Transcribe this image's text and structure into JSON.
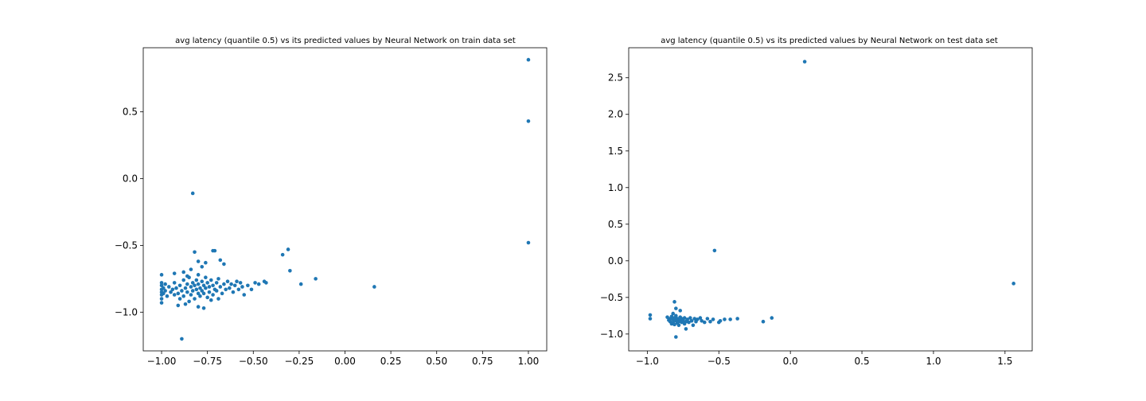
{
  "chart_data": [
    {
      "type": "scatter",
      "title": "avg latency (quantile 0.5) vs its predicted values by Neural Network on train data set",
      "xlabel": "",
      "ylabel": "",
      "xlim": [
        -1.1,
        1.1
      ],
      "ylim": [
        -1.29,
        0.98
      ],
      "xticks": [
        -1.0,
        -0.75,
        -0.5,
        -0.25,
        0.0,
        0.25,
        0.5,
        0.75,
        1.0
      ],
      "xtick_labels": [
        "−1.00",
        "−0.75",
        "−0.50",
        "−0.25",
        "0.00",
        "0.25",
        "0.50",
        "0.75",
        "1.00"
      ],
      "yticks": [
        -1.0,
        -0.5,
        0.0,
        0.5
      ],
      "ytick_labels": [
        "−1.0",
        "−0.5",
        "0.0",
        "0.5"
      ],
      "grid": false,
      "marker_color": "#1f77b4",
      "points": [
        [
          -1.0,
          -0.78
        ],
        [
          -1.0,
          -0.8
        ],
        [
          -1.0,
          -0.83
        ],
        [
          -1.0,
          -0.85
        ],
        [
          -1.0,
          -0.87
        ],
        [
          -1.0,
          -0.9
        ],
        [
          -1.0,
          -0.93
        ],
        [
          -1.0,
          -0.72
        ],
        [
          -0.99,
          -0.82
        ],
        [
          -0.99,
          -0.86
        ],
        [
          -0.98,
          -0.79
        ],
        [
          -0.98,
          -0.84
        ],
        [
          -0.97,
          -0.88
        ],
        [
          -0.96,
          -0.81
        ],
        [
          -0.95,
          -0.85
        ],
        [
          -0.94,
          -0.83
        ],
        [
          -0.93,
          -0.87
        ],
        [
          -0.93,
          -0.78
        ],
        [
          -0.92,
          -0.82
        ],
        [
          -0.91,
          -0.86
        ],
        [
          -0.9,
          -0.8
        ],
        [
          -0.9,
          -0.9
        ],
        [
          -0.89,
          -0.84
        ],
        [
          -0.88,
          -0.76
        ],
        [
          -0.88,
          -0.88
        ],
        [
          -0.87,
          -0.82
        ],
        [
          -0.86,
          -0.79
        ],
        [
          -0.86,
          -0.85
        ],
        [
          -0.85,
          -0.92
        ],
        [
          -0.85,
          -0.74
        ],
        [
          -0.84,
          -0.81
        ],
        [
          -0.84,
          -0.87
        ],
        [
          -0.83,
          -0.78
        ],
        [
          -0.83,
          -0.84
        ],
        [
          -0.82,
          -0.8
        ],
        [
          -0.82,
          -0.9
        ],
        [
          -0.81,
          -0.76
        ],
        [
          -0.81,
          -0.83
        ],
        [
          -0.8,
          -0.79
        ],
        [
          -0.8,
          -0.86
        ],
        [
          -0.8,
          -0.72
        ],
        [
          -0.79,
          -0.82
        ],
        [
          -0.79,
          -0.88
        ],
        [
          -0.78,
          -0.77
        ],
        [
          -0.78,
          -0.84
        ],
        [
          -0.77,
          -0.8
        ],
        [
          -0.77,
          -0.86
        ],
        [
          -0.76,
          -0.74
        ],
        [
          -0.76,
          -0.82
        ],
        [
          -0.75,
          -0.78
        ],
        [
          -0.75,
          -0.89
        ],
        [
          -0.74,
          -0.81
        ],
        [
          -0.74,
          -0.85
        ],
        [
          -0.73,
          -0.76
        ],
        [
          -0.72,
          -0.8
        ],
        [
          -0.72,
          -0.87
        ],
        [
          -0.71,
          -0.83
        ],
        [
          -0.7,
          -0.78
        ],
        [
          -0.7,
          -0.84
        ],
        [
          -0.69,
          -0.75
        ],
        [
          -0.68,
          -0.81
        ],
        [
          -0.67,
          -0.86
        ],
        [
          -0.66,
          -0.79
        ],
        [
          -0.65,
          -0.83
        ],
        [
          -0.64,
          -0.77
        ],
        [
          -0.63,
          -0.82
        ],
        [
          -0.62,
          -0.79
        ],
        [
          -0.61,
          -0.85
        ],
        [
          -0.6,
          -0.8
        ],
        [
          -0.59,
          -0.77
        ],
        [
          -0.58,
          -0.83
        ],
        [
          -0.57,
          -0.78
        ],
        [
          -0.56,
          -0.81
        ],
        [
          -0.55,
          -0.87
        ],
        [
          -0.53,
          -0.8
        ],
        [
          -0.51,
          -0.83
        ],
        [
          -0.49,
          -0.78
        ],
        [
          -0.47,
          -0.79
        ],
        [
          -0.44,
          -0.77
        ],
        [
          -0.43,
          -0.78
        ],
        [
          -0.91,
          -0.95
        ],
        [
          -0.87,
          -0.94
        ],
        [
          -0.8,
          -0.96
        ],
        [
          -0.77,
          -0.97
        ],
        [
          -0.73,
          -0.91
        ],
        [
          -0.69,
          -0.9
        ],
        [
          -0.84,
          -0.68
        ],
        [
          -0.8,
          -0.62
        ],
        [
          -0.78,
          -0.66
        ],
        [
          -0.76,
          -0.63
        ],
        [
          -0.72,
          -0.54
        ],
        [
          -0.71,
          -0.54
        ],
        [
          -0.68,
          -0.61
        ],
        [
          -0.66,
          -0.64
        ],
        [
          -0.82,
          -0.55
        ],
        [
          -0.93,
          -0.71
        ],
        [
          -0.88,
          -0.7
        ],
        [
          -0.86,
          -0.73
        ],
        [
          -0.89,
          -1.2
        ],
        [
          -0.83,
          -0.11
        ],
        [
          -0.34,
          -0.57
        ],
        [
          -0.31,
          -0.53
        ],
        [
          -0.3,
          -0.69
        ],
        [
          -0.24,
          -0.79
        ],
        [
          -0.16,
          -0.75
        ],
        [
          0.16,
          -0.81
        ],
        [
          1.0,
          0.89
        ],
        [
          1.0,
          0.43
        ],
        [
          1.0,
          -0.48
        ]
      ]
    },
    {
      "type": "scatter",
      "title": "avg latency (quantile 0.5) vs its predicted values by Neural Network on test data set",
      "xlabel": "",
      "ylabel": "",
      "xlim": [
        -1.13,
        1.69
      ],
      "ylim": [
        -1.23,
        2.91
      ],
      "xticks": [
        -1.0,
        -0.5,
        0.0,
        0.5,
        1.0,
        1.5
      ],
      "xtick_labels": [
        "−1.0",
        "−0.5",
        "0.0",
        "0.5",
        "1.0",
        "1.5"
      ],
      "yticks": [
        -1.0,
        -0.5,
        0.0,
        0.5,
        1.0,
        1.5,
        2.0,
        2.5
      ],
      "ytick_labels": [
        "−1.0",
        "−0.5",
        "0.0",
        "0.5",
        "1.0",
        "1.5",
        "2.0",
        "2.5"
      ],
      "grid": false,
      "marker_color": "#1f77b4",
      "points": [
        [
          -0.98,
          -0.74
        ],
        [
          -0.98,
          -0.79
        ],
        [
          -0.86,
          -0.77
        ],
        [
          -0.85,
          -0.81
        ],
        [
          -0.84,
          -0.79
        ],
        [
          -0.84,
          -0.83
        ],
        [
          -0.83,
          -0.76
        ],
        [
          -0.83,
          -0.86
        ],
        [
          -0.82,
          -0.8
        ],
        [
          -0.82,
          -0.84
        ],
        [
          -0.81,
          -0.78
        ],
        [
          -0.81,
          -0.87
        ],
        [
          -0.8,
          -0.82
        ],
        [
          -0.8,
          -0.75
        ],
        [
          -0.79,
          -0.85
        ],
        [
          -0.79,
          -0.79
        ],
        [
          -0.78,
          -0.83
        ],
        [
          -0.78,
          -0.88
        ],
        [
          -0.77,
          -0.77
        ],
        [
          -0.77,
          -0.81
        ],
        [
          -0.76,
          -0.84
        ],
        [
          -0.76,
          -0.79
        ],
        [
          -0.75,
          -0.82
        ],
        [
          -0.74,
          -0.86
        ],
        [
          -0.74,
          -0.78
        ],
        [
          -0.73,
          -0.83
        ],
        [
          -0.72,
          -0.8
        ],
        [
          -0.71,
          -0.84
        ],
        [
          -0.7,
          -0.78
        ],
        [
          -0.69,
          -0.82
        ],
        [
          -0.68,
          -0.88
        ],
        [
          -0.67,
          -0.79
        ],
        [
          -0.66,
          -0.83
        ],
        [
          -0.65,
          -0.8
        ],
        [
          -0.63,
          -0.78
        ],
        [
          -0.62,
          -0.82
        ],
        [
          -0.6,
          -0.84
        ],
        [
          -0.58,
          -0.79
        ],
        [
          -0.56,
          -0.83
        ],
        [
          -0.54,
          -0.8
        ],
        [
          -0.5,
          -0.84
        ],
        [
          -0.49,
          -0.82
        ],
        [
          -0.46,
          -0.8
        ],
        [
          -0.42,
          -0.8
        ],
        [
          -0.37,
          -0.79
        ],
        [
          -0.19,
          -0.83
        ],
        [
          -0.13,
          -0.78
        ],
        [
          -0.81,
          -0.56
        ],
        [
          -0.8,
          -0.65
        ],
        [
          -0.77,
          -0.68
        ],
        [
          -0.82,
          -0.72
        ],
        [
          -0.8,
          -1.04
        ],
        [
          -0.73,
          -0.93
        ],
        [
          -0.53,
          0.14
        ],
        [
          0.1,
          2.72
        ],
        [
          1.56,
          -0.31
        ]
      ]
    }
  ]
}
